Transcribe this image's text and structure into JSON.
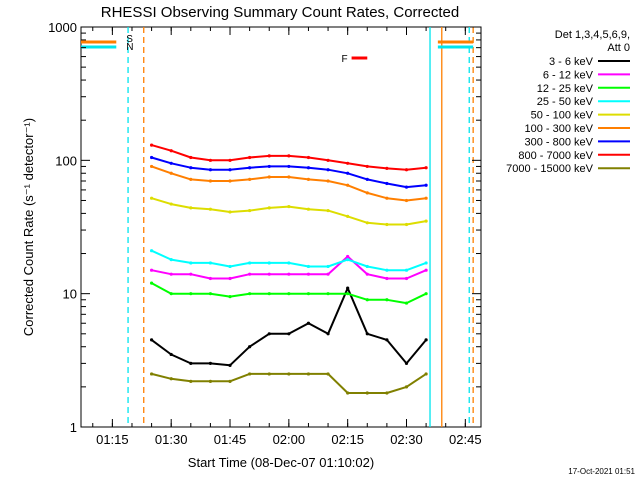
{
  "chart_data": {
    "type": "line",
    "title": "RHESSI Observing Summary Count Rates, Corrected",
    "xlabel": "Start Time (08-Dec-07 01:10:02)",
    "ylabel": "Corrected Count Rate (s⁻¹ detector⁻¹)",
    "yscale": "log",
    "ylim": [
      1,
      1000
    ],
    "xlim": [
      "01:07",
      "02:49"
    ],
    "x_ticks": [
      "01:15",
      "01:30",
      "01:45",
      "02:00",
      "02:15",
      "02:30",
      "02:45"
    ],
    "y_ticks": [
      "1",
      "10",
      "100",
      "1000"
    ],
    "legend_header": [
      "Det 1,3,4,5,6,9,",
      "Att 0"
    ],
    "legend_position": "right",
    "timestamp": "17-Oct-2021 01:51",
    "flags": [
      {
        "label": "S",
        "color": "#ff7f00",
        "segments": [
          [
            "01:07",
            "01:16"
          ],
          [
            "02:38",
            "02:47"
          ]
        ]
      },
      {
        "label": "N",
        "color": "#00e5ee",
        "segments": [
          [
            "01:07",
            "01:16"
          ],
          [
            "02:38",
            "02:47"
          ]
        ]
      },
      {
        "label": "F",
        "color": "#ff0000",
        "segments": [
          [
            "02:16",
            "02:20"
          ]
        ]
      }
    ],
    "vertical_lines": [
      {
        "time": "01:19",
        "color": "#00e5ee",
        "style": "dashed"
      },
      {
        "time": "01:23",
        "color": "#ff7f00",
        "style": "dashed"
      },
      {
        "time": "02:36",
        "color": "#00e5ee",
        "style": "solid"
      },
      {
        "time": "02:39",
        "color": "#ff7f00",
        "style": "solid"
      },
      {
        "time": "02:46",
        "color": "#00e5ee",
        "style": "dashed"
      },
      {
        "time": "02:47",
        "color": "#ff7f00",
        "style": "dashed"
      }
    ],
    "x": [
      "01:25",
      "01:30",
      "01:35",
      "01:40",
      "01:45",
      "01:50",
      "01:55",
      "02:00",
      "02:05",
      "02:10",
      "02:15",
      "02:20",
      "02:25",
      "02:30",
      "02:35"
    ],
    "series": [
      {
        "name": "3 - 6 keV",
        "color": "#000000",
        "values": [
          4.5,
          3.5,
          3,
          3,
          2.9,
          4,
          5,
          5,
          6,
          5,
          11,
          5,
          4.5,
          3,
          4.5
        ]
      },
      {
        "name": "6 - 12 keV",
        "color": "#ff00ff",
        "values": [
          15,
          14,
          14,
          13,
          13,
          14,
          14,
          14,
          14,
          14,
          19,
          14,
          13,
          13,
          15
        ]
      },
      {
        "name": "12 - 25 keV",
        "color": "#00ff00",
        "values": [
          12,
          10,
          10,
          10,
          9.5,
          10,
          10,
          10,
          10,
          10,
          10,
          9,
          9,
          8.5,
          10
        ]
      },
      {
        "name": "25 - 50 keV",
        "color": "#00ffff",
        "values": [
          21,
          18,
          17,
          17,
          16,
          17,
          17,
          17,
          16,
          16,
          18,
          16,
          15,
          15,
          17
        ]
      },
      {
        "name": "50 - 100 keV",
        "color": "#dddd00",
        "values": [
          52,
          47,
          44,
          43,
          41,
          42,
          44,
          45,
          43,
          42,
          38,
          34,
          33,
          33,
          35
        ]
      },
      {
        "name": "100 - 300 keV",
        "color": "#ff7f00",
        "values": [
          90,
          80,
          72,
          70,
          70,
          72,
          75,
          75,
          72,
          70,
          65,
          57,
          52,
          50,
          52
        ]
      },
      {
        "name": "300 - 800 keV",
        "color": "#0000ff",
        "values": [
          105,
          95,
          88,
          85,
          85,
          88,
          90,
          90,
          88,
          85,
          80,
          72,
          67,
          63,
          65
        ]
      },
      {
        "name": "800 - 7000 keV",
        "color": "#ff0000",
        "values": [
          130,
          118,
          105,
          100,
          100,
          105,
          108,
          108,
          105,
          100,
          95,
          90,
          87,
          85,
          88
        ]
      },
      {
        "name": "7000 - 15000 keV",
        "color": "#808000",
        "values": [
          2.5,
          2.3,
          2.2,
          2.2,
          2.2,
          2.5,
          2.5,
          2.5,
          2.5,
          2.5,
          1.8,
          1.8,
          1.8,
          2.0,
          2.5
        ]
      }
    ]
  }
}
